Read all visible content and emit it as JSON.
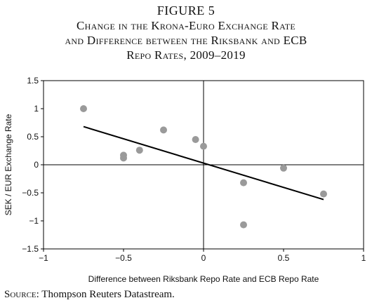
{
  "figure": {
    "label": "FIGURE 5",
    "title_line1": "Change in the Krona-Euro Exchange Rate",
    "title_line2": "and Difference between the Riksbank and ECB",
    "title_line3": "Repo Rates, 2009–2019",
    "source_label": "Source:",
    "source_text": " Thompson Reuters Datastream."
  },
  "chart_data": {
    "type": "scatter",
    "xlabel": "Difference between Riksbank Repo Rate and ECB Repo Rate",
    "ylabel": "SEK / EUR Exchange Rate",
    "xlim": [
      -1,
      1
    ],
    "ylim": [
      -1.5,
      1.5
    ],
    "xticks": [
      -1,
      -0.5,
      0,
      0.5,
      1
    ],
    "xtick_labels": [
      "−1",
      "−0.5",
      "0",
      "0.5",
      "1"
    ],
    "yticks": [
      -1.5,
      -1,
      -0.5,
      0,
      0.5,
      1,
      1.5
    ],
    "ytick_labels": [
      "−1.5",
      "−1",
      "−0.5",
      "0",
      "0.5",
      "1",
      "1.5"
    ],
    "grid": false,
    "points": [
      {
        "x": -0.75,
        "y": 1.0
      },
      {
        "x": -0.5,
        "y": 0.17
      },
      {
        "x": -0.5,
        "y": 0.12
      },
      {
        "x": -0.4,
        "y": 0.26
      },
      {
        "x": -0.25,
        "y": 0.62
      },
      {
        "x": -0.05,
        "y": 0.45
      },
      {
        "x": 0.0,
        "y": 0.33
      },
      {
        "x": 0.25,
        "y": -0.32
      },
      {
        "x": 0.25,
        "y": -1.07
      },
      {
        "x": 0.5,
        "y": -0.06
      },
      {
        "x": 0.75,
        "y": -0.52
      }
    ],
    "trendline": {
      "x": [
        -0.75,
        0.75
      ],
      "y": [
        0.68,
        -0.62
      ]
    },
    "point_color": "#9a9a9a",
    "line_color": "#000000"
  }
}
